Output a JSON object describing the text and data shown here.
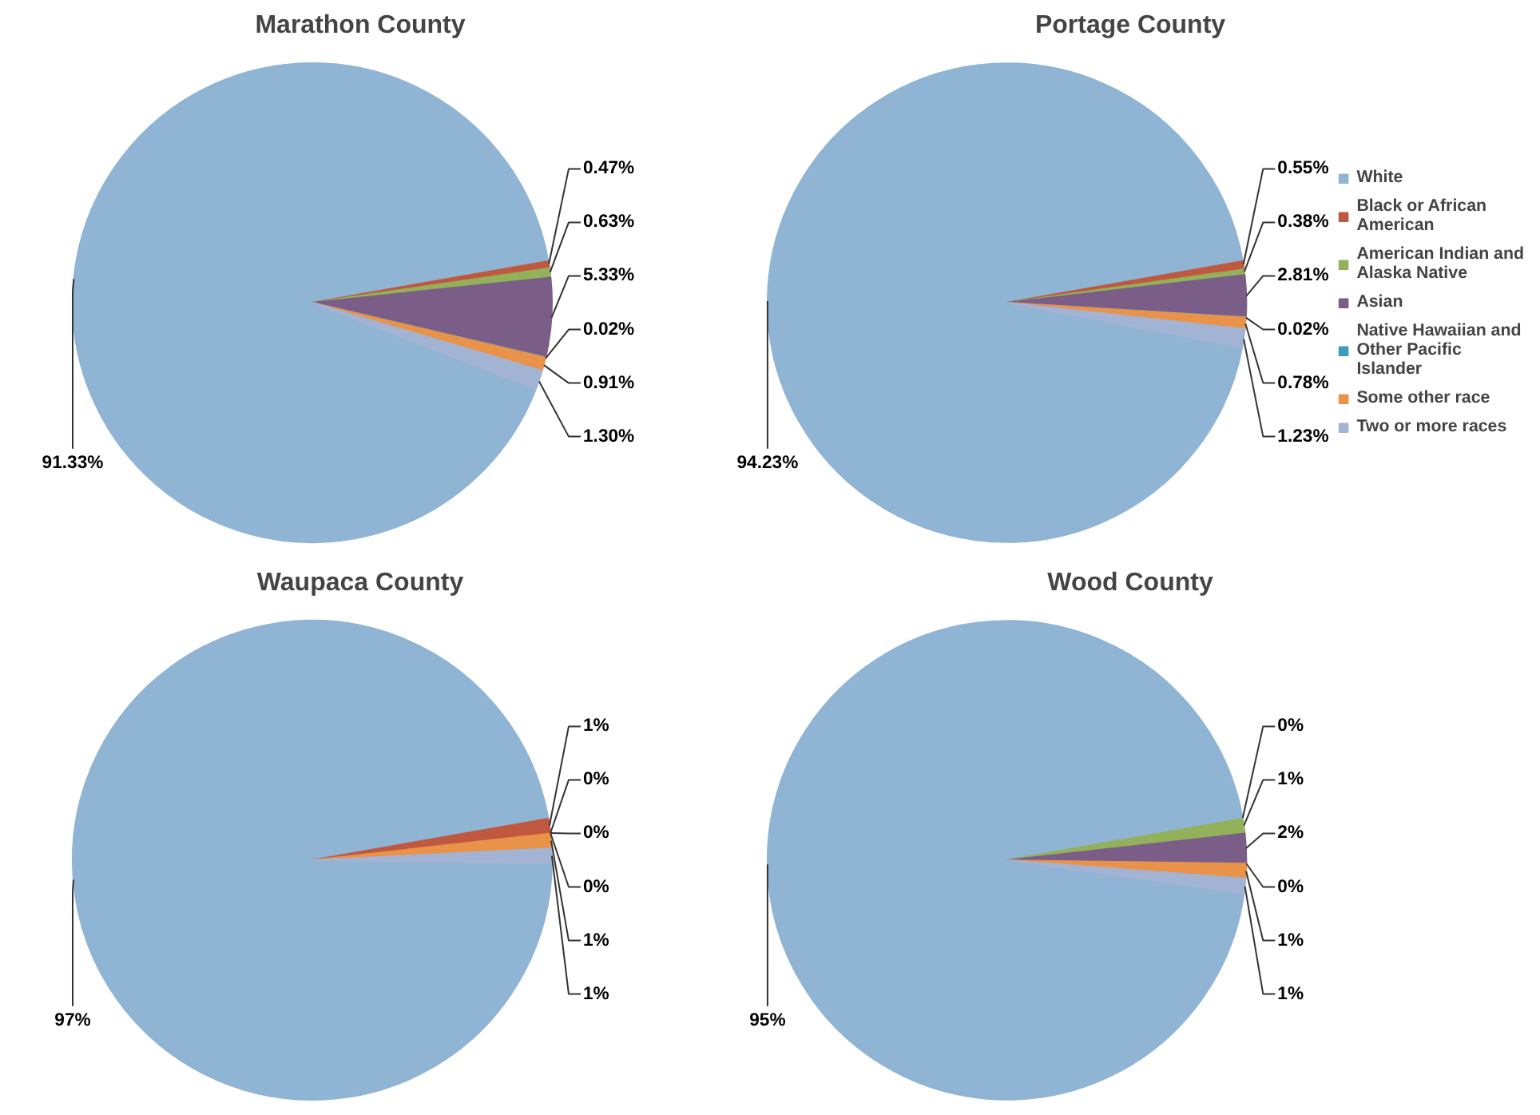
{
  "chart_data": [
    {
      "type": "pie",
      "title": "Marathon County",
      "categories": [
        "White",
        "Black or African American",
        "American Indian and Alaska Native",
        "Asian",
        "Native Hawaiian and Other Pacific Islander",
        "Some other race",
        "Two or more races"
      ],
      "values": [
        91.33,
        0.47,
        0.63,
        5.33,
        0.02,
        0.91,
        1.3
      ],
      "value_labels": [
        "91.33%",
        "0.47%",
        "0.63%",
        "5.33%",
        "0.02%",
        "0.91%",
        "1.30%"
      ],
      "colors": [
        "#8fb4d4",
        "#c0583f",
        "#93b15a",
        "#7b5e88",
        "#3d9bc0",
        "#e9934a",
        "#a3b3d3"
      ],
      "legend": "right"
    },
    {
      "type": "pie",
      "title": "Portage County",
      "categories": [
        null,
        null,
        null,
        null,
        null,
        null,
        null
      ],
      "values": [
        94.23,
        0.55,
        0.38,
        2.81,
        0.02,
        0.78,
        1.23
      ],
      "value_labels": [
        "94.23%",
        "0.55%",
        "0.38%",
        "2.81%",
        "0.02%",
        "0.78%",
        "1.23%"
      ],
      "colors": [
        "#8fb4d4",
        "#c0583f",
        "#93b15a",
        "#7b5e88",
        "#3d9bc0",
        "#e9934a",
        "#a3b3d3"
      ]
    },
    {
      "type": "pie",
      "title": "Waupaca County",
      "categories": [
        null,
        null,
        null,
        null,
        null,
        null,
        null
      ],
      "values": [
        97,
        1,
        0,
        0,
        0,
        1,
        1
      ],
      "value_labels": [
        "97%",
        "1%",
        "0%",
        "0%",
        "0%",
        "1%",
        "1%"
      ],
      "colors": [
        "#8fb4d4",
        "#c0583f",
        "#93b15a",
        "#7b5e88",
        "#3d9bc0",
        "#e9934a",
        "#a3b3d3"
      ]
    },
    {
      "type": "pie",
      "title": "Wood County",
      "categories": [
        null,
        null,
        null,
        null,
        null,
        null,
        null
      ],
      "values": [
        95,
        0,
        1,
        2,
        0,
        1,
        1
      ],
      "value_labels": [
        "95%",
        "0%",
        "1%",
        "2%",
        "0%",
        "1%",
        "1%"
      ],
      "colors": [
        "#8fb4d4",
        "#c0583f",
        "#93b15a",
        "#7b5e88",
        "#3d9bc0",
        "#e9934a",
        "#a3b3d3"
      ]
    }
  ]
}
